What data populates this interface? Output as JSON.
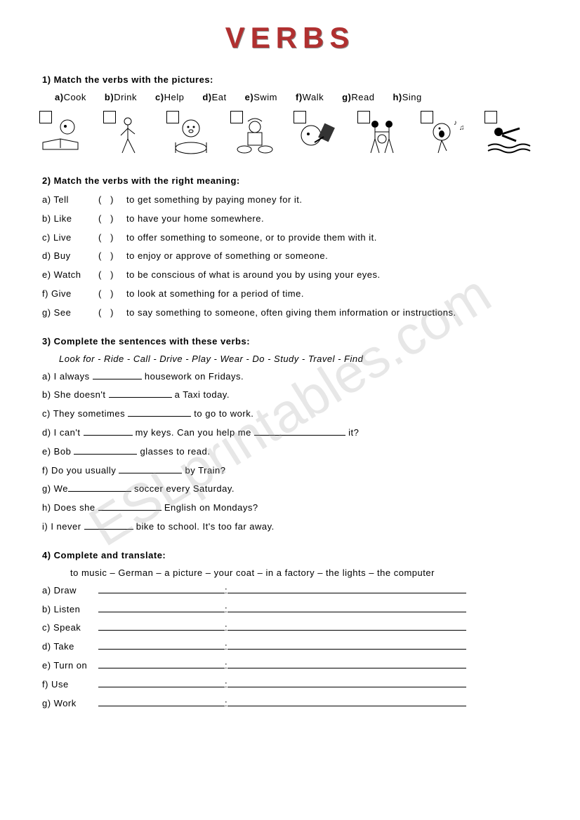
{
  "title": "VERBS",
  "watermark": "ESLprintables.com",
  "q1": {
    "title": "1)  Match the verbs with the pictures:",
    "options": [
      {
        "k": "a)",
        "v": "Cook"
      },
      {
        "k": "b)",
        "v": "Drink"
      },
      {
        "k": "c)",
        "v": "Help"
      },
      {
        "k": "d)",
        "v": "Eat"
      },
      {
        "k": "e)",
        "v": "Swim"
      },
      {
        "k": "f)",
        "v": "Walk"
      },
      {
        "k": "g)",
        "v": "Read"
      },
      {
        "k": "h)",
        "v": "Sing"
      }
    ]
  },
  "q2": {
    "title": "2)  Match the verbs with the right meaning:",
    "items": [
      {
        "k": "a)",
        "word": "Tell",
        "def": "to get something by paying money for it."
      },
      {
        "k": "b)",
        "word": "Like",
        "def": "to have your home somewhere."
      },
      {
        "k": "c)",
        "word": "Live",
        "def": "to offer something to someone, or to provide them with it."
      },
      {
        "k": "d)",
        "word": "Buy",
        "def": "to enjoy or approve of something or someone."
      },
      {
        "k": "e)",
        "word": "Watch",
        "def": "to be conscious of what is around you by using your eyes."
      },
      {
        "k": "f)",
        "word": "Give",
        "def": "to look at something for a period of time."
      },
      {
        "k": "g)",
        "word": "See",
        "def": "to say something to someone, often giving them information or instructions."
      }
    ]
  },
  "q3": {
    "title": "3)  Complete the sentences with these verbs:",
    "words": "Look for  -  Ride  -  Call  -  Drive  -  Play  -  Wear  -  Do  -  Study -  Travel  -   Find",
    "items": {
      "a_pre": "a) I always ",
      "a_post": " housework on Fridays.",
      "b_pre": "b) She doesn't ",
      "b_post": " a Taxi today.",
      "c_pre": "c) They sometimes ",
      "c_post": " to go to work.",
      "d_pre": "d) I can't ",
      "d_mid": " my keys. Can you help me ",
      "d_post": " it?",
      "e_pre": "e) Bob ",
      "e_post": " glasses to read.",
      "f_pre": "f)  Do you usually ",
      "f_post": " by Train?",
      "g_pre": "g) We",
      "g_post": " soccer every Saturday.",
      "h_pre": "h) Does she ",
      "h_post": " English on Mondays?",
      "i_pre": "i) I never ",
      "i_post": " bike to school. It's too far away."
    }
  },
  "q4": {
    "title": "4)  Complete and translate:",
    "words": "to music  –  German  –  a picture  –  your coat   –  in a factory  –  the lights  –  the computer",
    "items": [
      {
        "k": "a)",
        "w": "Draw"
      },
      {
        "k": "b)",
        "w": "Listen"
      },
      {
        "k": "c)",
        "w": "Speak"
      },
      {
        "k": "d)",
        "w": "Take"
      },
      {
        "k": "e)",
        "w": "Turn on"
      },
      {
        "k": "f)",
        "w": "Use"
      },
      {
        "k": "g)",
        "w": "Work"
      }
    ]
  }
}
